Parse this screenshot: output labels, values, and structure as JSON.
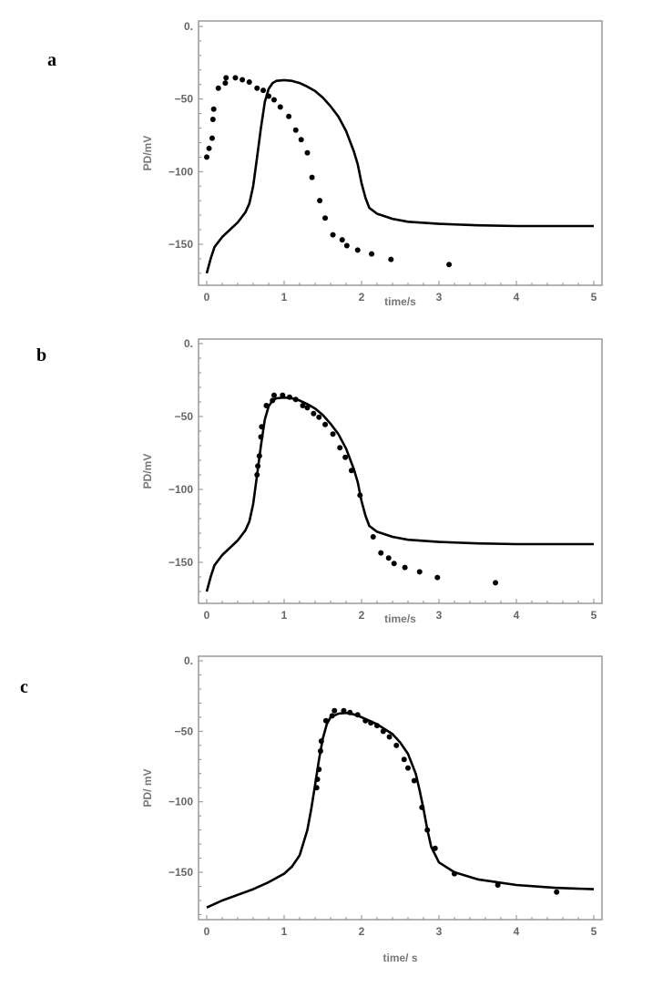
{
  "chart_data": [
    {
      "panel": "a",
      "type": "line",
      "xlabel": "time/s",
      "ylabel": "PD/mV",
      "xlim": [
        0,
        5
      ],
      "ylim": [
        -178,
        0
      ],
      "xticks": [
        "0",
        "1",
        "2",
        "3",
        "4",
        "5"
      ],
      "yticks": [
        {
          "v": 0,
          "label": "0."
        },
        {
          "v": -50,
          "label": "-50"
        },
        {
          "v": -100,
          "label": "-100"
        },
        {
          "v": -150,
          "label": "-150"
        }
      ],
      "model": [
        [
          0,
          -170
        ],
        [
          0.05,
          -160
        ],
        [
          0.1,
          -152
        ],
        [
          0.2,
          -145
        ],
        [
          0.3,
          -140
        ],
        [
          0.4,
          -135
        ],
        [
          0.5,
          -128
        ],
        [
          0.55,
          -122
        ],
        [
          0.6,
          -110
        ],
        [
          0.65,
          -90
        ],
        [
          0.7,
          -70
        ],
        [
          0.75,
          -52
        ],
        [
          0.8,
          -43
        ],
        [
          0.85,
          -39
        ],
        [
          0.9,
          -37.5
        ],
        [
          1.0,
          -37
        ],
        [
          1.1,
          -37.5
        ],
        [
          1.2,
          -39
        ],
        [
          1.3,
          -41.5
        ],
        [
          1.4,
          -44.5
        ],
        [
          1.5,
          -49
        ],
        [
          1.6,
          -55
        ],
        [
          1.7,
          -62
        ],
        [
          1.8,
          -72
        ],
        [
          1.9,
          -86
        ],
        [
          1.95,
          -95
        ],
        [
          2.0,
          -108
        ],
        [
          2.05,
          -118
        ],
        [
          2.1,
          -125
        ],
        [
          2.2,
          -129
        ],
        [
          2.4,
          -132.5
        ],
        [
          2.6,
          -134.5
        ],
        [
          3.0,
          -136
        ],
        [
          3.5,
          -137
        ],
        [
          4.0,
          -137.5
        ],
        [
          5.0,
          -137.5
        ]
      ],
      "experimental": [
        [
          0,
          -90
        ],
        [
          0.03,
          -84
        ],
        [
          0.07,
          -77
        ],
        [
          0.08,
          -64
        ],
        [
          0.09,
          -57
        ],
        [
          0.15,
          -42.5
        ],
        [
          0.24,
          -39
        ],
        [
          0.25,
          -35.4
        ],
        [
          0.37,
          -35.4
        ],
        [
          0.46,
          -36.7
        ],
        [
          0.55,
          -38.3
        ],
        [
          0.65,
          -42.5
        ],
        [
          0.73,
          -44
        ],
        [
          0.8,
          -48
        ],
        [
          0.87,
          -50.5
        ],
        [
          0.95,
          -55.5
        ],
        [
          1.06,
          -62
        ],
        [
          1.15,
          -71.4
        ],
        [
          1.22,
          -78
        ],
        [
          1.3,
          -87
        ],
        [
          1.36,
          -104
        ],
        [
          1.46,
          -120
        ],
        [
          1.53,
          -132
        ],
        [
          1.63,
          -143.5
        ],
        [
          1.75,
          -147
        ],
        [
          1.81,
          -151
        ],
        [
          1.95,
          -154
        ],
        [
          2.13,
          -156.7
        ],
        [
          2.38,
          -160.5
        ],
        [
          3.13,
          -164
        ]
      ]
    },
    {
      "panel": "b",
      "type": "line",
      "xlabel": "time/s",
      "ylabel": "PD/mV",
      "xlim": [
        0,
        5
      ],
      "ylim": [
        -178,
        0
      ],
      "xticks": [
        "0",
        "1",
        "2",
        "3",
        "4",
        "5"
      ],
      "yticks": [
        {
          "v": 0,
          "label": "0."
        },
        {
          "v": -50,
          "label": "-50"
        },
        {
          "v": -100,
          "label": "-100"
        },
        {
          "v": -150,
          "label": "-150"
        }
      ],
      "model": [
        [
          0,
          -170
        ],
        [
          0.05,
          -160
        ],
        [
          0.1,
          -152
        ],
        [
          0.2,
          -145
        ],
        [
          0.3,
          -140
        ],
        [
          0.4,
          -135
        ],
        [
          0.5,
          -128
        ],
        [
          0.55,
          -122
        ],
        [
          0.6,
          -110
        ],
        [
          0.65,
          -90
        ],
        [
          0.7,
          -70
        ],
        [
          0.75,
          -52
        ],
        [
          0.8,
          -43
        ],
        [
          0.85,
          -39
        ],
        [
          0.9,
          -37.5
        ],
        [
          1.0,
          -37
        ],
        [
          1.1,
          -37.5
        ],
        [
          1.2,
          -39
        ],
        [
          1.3,
          -41.5
        ],
        [
          1.4,
          -44.5
        ],
        [
          1.5,
          -49
        ],
        [
          1.6,
          -55
        ],
        [
          1.7,
          -62
        ],
        [
          1.8,
          -72
        ],
        [
          1.9,
          -86
        ],
        [
          1.95,
          -95
        ],
        [
          2.0,
          -108
        ],
        [
          2.05,
          -118
        ],
        [
          2.1,
          -125
        ],
        [
          2.2,
          -129
        ],
        [
          2.4,
          -132.5
        ],
        [
          2.6,
          -134.5
        ],
        [
          3.0,
          -136
        ],
        [
          3.5,
          -137
        ],
        [
          4.0,
          -137.5
        ],
        [
          5.0,
          -137.5
        ]
      ],
      "experimental": [
        [
          0.65,
          -90
        ],
        [
          0.66,
          -84
        ],
        [
          0.68,
          -77
        ],
        [
          0.7,
          -64
        ],
        [
          0.71,
          -57
        ],
        [
          0.77,
          -42.5
        ],
        [
          0.85,
          -39
        ],
        [
          0.87,
          -35.4
        ],
        [
          0.98,
          -35.4
        ],
        [
          1.07,
          -36.7
        ],
        [
          1.15,
          -38.3
        ],
        [
          1.24,
          -42.5
        ],
        [
          1.3,
          -44
        ],
        [
          1.38,
          -48
        ],
        [
          1.45,
          -50.5
        ],
        [
          1.53,
          -55.5
        ],
        [
          1.63,
          -62
        ],
        [
          1.72,
          -71.4
        ],
        [
          1.79,
          -78
        ],
        [
          1.87,
          -87
        ],
        [
          1.98,
          -104
        ],
        [
          2.15,
          -132.5
        ],
        [
          2.25,
          -143.5
        ],
        [
          2.35,
          -147
        ],
        [
          2.42,
          -150.8
        ],
        [
          2.56,
          -153.5
        ],
        [
          2.75,
          -156.5
        ],
        [
          2.98,
          -160.4
        ],
        [
          3.73,
          -164
        ]
      ]
    },
    {
      "panel": "c",
      "type": "line",
      "xlabel": "time/ s",
      "ylabel": "PD/ mV",
      "xlim": [
        0,
        5
      ],
      "ylim": [
        -183,
        0
      ],
      "xticks": [
        "0",
        "1",
        "2",
        "3",
        "4",
        "5"
      ],
      "yticks": [
        {
          "v": 0,
          "label": "0."
        },
        {
          "v": -50,
          "label": "-50"
        },
        {
          "v": -100,
          "label": "-100"
        },
        {
          "v": -150,
          "label": "-150"
        }
      ],
      "model": [
        [
          0,
          -175
        ],
        [
          0.2,
          -170
        ],
        [
          0.4,
          -166
        ],
        [
          0.6,
          -162
        ],
        [
          0.8,
          -157
        ],
        [
          1.0,
          -151
        ],
        [
          1.1,
          -146
        ],
        [
          1.2,
          -138
        ],
        [
          1.3,
          -120
        ],
        [
          1.35,
          -105
        ],
        [
          1.4,
          -88
        ],
        [
          1.45,
          -70
        ],
        [
          1.5,
          -55
        ],
        [
          1.55,
          -45
        ],
        [
          1.6,
          -40
        ],
        [
          1.7,
          -37.5
        ],
        [
          1.8,
          -37
        ],
        [
          1.9,
          -38
        ],
        [
          2.0,
          -40
        ],
        [
          2.2,
          -45
        ],
        [
          2.4,
          -52
        ],
        [
          2.5,
          -58
        ],
        [
          2.6,
          -66
        ],
        [
          2.7,
          -80
        ],
        [
          2.75,
          -92
        ],
        [
          2.8,
          -105
        ],
        [
          2.85,
          -120
        ],
        [
          2.9,
          -132
        ],
        [
          3.0,
          -143
        ],
        [
          3.2,
          -150
        ],
        [
          3.5,
          -155
        ],
        [
          4.0,
          -159
        ],
        [
          4.5,
          -161
        ],
        [
          5.0,
          -162
        ]
      ],
      "experimental": [
        [
          1.42,
          -90
        ],
        [
          1.43,
          -84
        ],
        [
          1.45,
          -77
        ],
        [
          1.47,
          -64
        ],
        [
          1.48,
          -57
        ],
        [
          1.54,
          -42.5
        ],
        [
          1.62,
          -39
        ],
        [
          1.65,
          -35.4
        ],
        [
          1.77,
          -35.4
        ],
        [
          1.85,
          -36.7
        ],
        [
          1.95,
          -38.3
        ],
        [
          2.05,
          -42.5
        ],
        [
          2.12,
          -44
        ],
        [
          2.2,
          -46
        ],
        [
          2.28,
          -50
        ],
        [
          2.36,
          -54
        ],
        [
          2.45,
          -60
        ],
        [
          2.55,
          -70
        ],
        [
          2.6,
          -76
        ],
        [
          2.68,
          -85
        ],
        [
          2.78,
          -104
        ],
        [
          2.85,
          -120
        ],
        [
          2.95,
          -133
        ],
        [
          3.2,
          -151
        ],
        [
          3.76,
          -159
        ],
        [
          4.52,
          -164
        ]
      ]
    }
  ],
  "colors": {
    "axis": "#8a8a8a",
    "marks": "#000000"
  }
}
